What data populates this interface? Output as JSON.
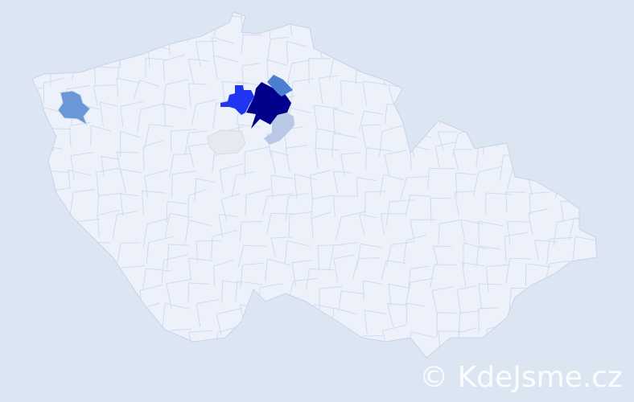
{
  "watermark": "© KdeJsme.cz",
  "colors": {
    "background": "#dce5f2",
    "country_fill": "#edf1fa",
    "border": "#c8d2ea",
    "darkest": "#00008b",
    "strong": "#1f35f0",
    "medium": "#4a7fd2",
    "medium2": "#6b97d8",
    "light": "#b9c8e6",
    "grey": "#e8e9ef"
  },
  "highlighted_districts": [
    {
      "name": "district-darkest",
      "level": "darkest"
    },
    {
      "name": "district-strong",
      "level": "strong"
    },
    {
      "name": "district-medium-ne",
      "level": "medium"
    },
    {
      "name": "district-medium-west",
      "level": "medium2"
    },
    {
      "name": "district-light",
      "level": "light"
    },
    {
      "name": "district-grey",
      "level": "grey"
    }
  ]
}
